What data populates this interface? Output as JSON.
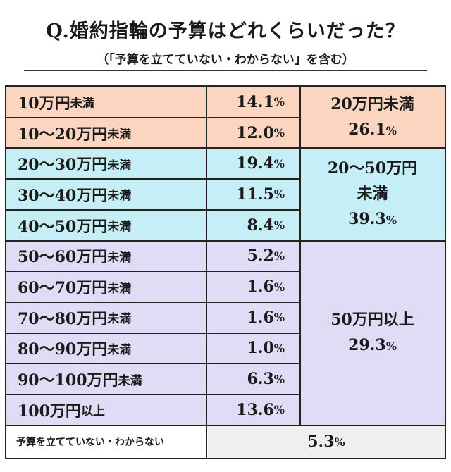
{
  "title": "Q.婚約指輪の予算はどれくらいだった？",
  "subtitle": "（「予算を立てていない・わからない」を含む）",
  "colors": {
    "group1": "#fbd5c0",
    "group2": "#c6eef7",
    "group3": "#e1dbf5",
    "footer": "#efefef",
    "border": "#222222"
  },
  "chart_data": {
    "type": "table",
    "unit": "%",
    "rows": [
      {
        "label": "10万円",
        "suffix": "未満",
        "value": "14.1",
        "group": 0
      },
      {
        "label": "10〜20万円",
        "suffix": "未満",
        "value": "12.0",
        "group": 0
      },
      {
        "label": "20〜30万円",
        "suffix": "未満",
        "value": "19.4",
        "group": 1
      },
      {
        "label": "30〜40万円",
        "suffix": "未満",
        "value": "11.5",
        "group": 1
      },
      {
        "label": "40〜50万円",
        "suffix": "未満",
        "value": "8.4",
        "group": 1
      },
      {
        "label": "50〜60万円",
        "suffix": "未満",
        "value": "5.2",
        "group": 2
      },
      {
        "label": "60〜70万円",
        "suffix": "未満",
        "value": "1.6",
        "group": 2
      },
      {
        "label": "70〜80万円",
        "suffix": "未満",
        "value": "1.6",
        "group": 2
      },
      {
        "label": "80〜90万円",
        "suffix": "未満",
        "value": "1.0",
        "group": 2
      },
      {
        "label": "90〜100万円",
        "suffix": "未満",
        "value": "6.3",
        "group": 2
      },
      {
        "label": "100万円",
        "suffix": "以上",
        "value": "13.6",
        "group": 2
      }
    ],
    "groups": [
      {
        "lines": [
          "20万円未満"
        ],
        "value": "26.1"
      },
      {
        "lines": [
          "20〜50万円",
          "未満"
        ],
        "value": "39.3"
      },
      {
        "lines": [
          "50万円以上"
        ],
        "value": "29.3"
      }
    ],
    "footer": {
      "label": "予算を立てていない・わからない",
      "value": "5.3"
    }
  }
}
